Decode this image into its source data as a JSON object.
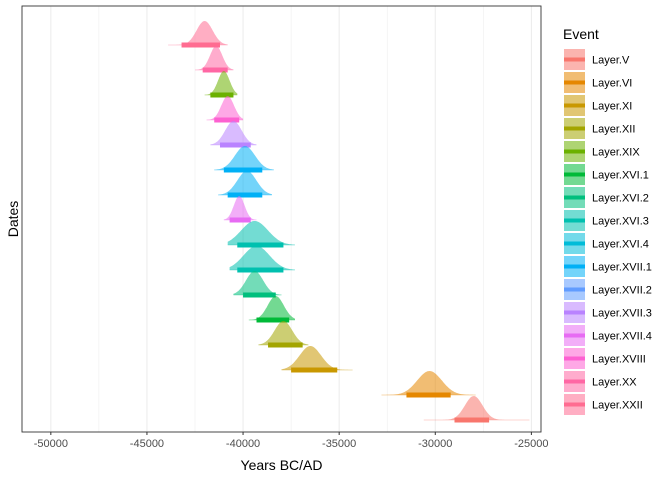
{
  "chart_data": {
    "type": "area",
    "title": "",
    "xlabel": "Years BC/AD",
    "ylabel": "Dates",
    "xlim": [
      -51500,
      -24500
    ],
    "x_ticks": [
      -50000,
      -45000,
      -40000,
      -35000,
      -30000,
      -25000
    ],
    "x_tick_labels": [
      "-50000",
      "-45000",
      "-40000",
      "-35000",
      "-30000",
      "-25000"
    ],
    "grid": true,
    "legend_position": "right",
    "legend_title": "Event",
    "legend": [
      {
        "name": "Layer.V",
        "color": "#F8766D"
      },
      {
        "name": "Layer.VI",
        "color": "#E58700"
      },
      {
        "name": "Layer.XI",
        "color": "#C99800"
      },
      {
        "name": "Layer.XII",
        "color": "#A3A500"
      },
      {
        "name": "Layer.XIX",
        "color": "#6BB100"
      },
      {
        "name": "Layer.XVI.1",
        "color": "#00BA38"
      },
      {
        "name": "Layer.XVI.2",
        "color": "#00BF7D"
      },
      {
        "name": "Layer.XVI.3",
        "color": "#00C0AF"
      },
      {
        "name": "Layer.XVI.4",
        "color": "#00BCD8"
      },
      {
        "name": "Layer.XVII.1",
        "color": "#00B0F6"
      },
      {
        "name": "Layer.XVII.2",
        "color": "#619CFF"
      },
      {
        "name": "Layer.XVII.3",
        "color": "#B983FF"
      },
      {
        "name": "Layer.XVII.4",
        "color": "#E76BF3"
      },
      {
        "name": "Layer.XVIII",
        "color": "#FD61D1"
      },
      {
        "name": "Layer.XX",
        "color": "#FF67A4"
      },
      {
        "name": "Layer.XXII",
        "color": "#FF6C91"
      }
    ],
    "series": [
      {
        "name": "Layer.XXII",
        "color": "#FF6C91",
        "mode": -42000,
        "sd": 420,
        "hpd": [
          -43200,
          -41200
        ],
        "min": -43900,
        "max": -40800
      },
      {
        "name": "Layer.XX",
        "color": "#FF67A4",
        "mode": -41400,
        "sd": 320,
        "hpd": [
          -42100,
          -40800
        ],
        "min": -42500,
        "max": -40500
      },
      {
        "name": "Layer.XIX",
        "color": "#6BB100",
        "mode": -41000,
        "sd": 300,
        "hpd": [
          -41700,
          -40500
        ],
        "min": -42000,
        "max": -40300
      },
      {
        "name": "Layer.XVIII",
        "color": "#FD61D1",
        "mode": -40800,
        "sd": 330,
        "hpd": [
          -41500,
          -40200
        ],
        "min": -41900,
        "max": -40000
      },
      {
        "name": "Layer.XVII.3",
        "color": "#B983FF",
        "mode": -40500,
        "sd": 430,
        "hpd": [
          -41200,
          -39600
        ],
        "min": -41700,
        "max": -39300
      },
      {
        "name": "Layer.XVII.1",
        "color": "#00B0F6",
        "mode": -39900,
        "sd": 520,
        "hpd": [
          -41000,
          -39000
        ],
        "min": -41500,
        "max": -38400
      },
      {
        "name": "Layer.XVII.2",
        "color": "#00B0F6",
        "mode": -39800,
        "sd": 500,
        "hpd": [
          -40800,
          -39000
        ],
        "min": -41300,
        "max": -38500
      },
      {
        "name": "Layer.XVII.4",
        "color": "#E76BF3",
        "mode": -40200,
        "sd": 280,
        "hpd": [
          -40700,
          -39600
        ],
        "min": -41000,
        "max": -39300
      },
      {
        "name": "Layer.XVI.3",
        "color": "#00C0AF",
        "mode": -39400,
        "sd": 700,
        "hpd": [
          -40300,
          -37900
        ],
        "min": -40800,
        "max": -37300
      },
      {
        "name": "Layer.XVI.4",
        "color": "#00C0AF",
        "mode": -39300,
        "sd": 680,
        "hpd": [
          -40300,
          -37900
        ],
        "min": -40700,
        "max": -37300
      },
      {
        "name": "Layer.XVI.2",
        "color": "#00BF7D",
        "mode": -39400,
        "sd": 450,
        "hpd": [
          -40000,
          -38300
        ],
        "min": -40500,
        "max": -38000
      },
      {
        "name": "Layer.XVI.1",
        "color": "#00BA38",
        "mode": -38300,
        "sd": 420,
        "hpd": [
          -39300,
          -37600
        ],
        "min": -39700,
        "max": -37300
      },
      {
        "name": "Layer.XII",
        "color": "#A3A500",
        "mode": -37900,
        "sd": 460,
        "hpd": [
          -38700,
          -36900
        ],
        "min": -39200,
        "max": -36600
      },
      {
        "name": "Layer.XI",
        "color": "#C99800",
        "mode": -36500,
        "sd": 560,
        "hpd": [
          -37500,
          -35100
        ],
        "min": -38000,
        "max": -34300
      },
      {
        "name": "Layer.VI",
        "color": "#E58700",
        "mode": -30300,
        "sd": 640,
        "hpd": [
          -31500,
          -29200
        ],
        "min": -32800,
        "max": -27900
      },
      {
        "name": "Layer.V",
        "color": "#F8766D",
        "mode": -28000,
        "sd": 460,
        "hpd": [
          -29000,
          -27200
        ],
        "min": -30600,
        "max": -25100
      }
    ]
  }
}
